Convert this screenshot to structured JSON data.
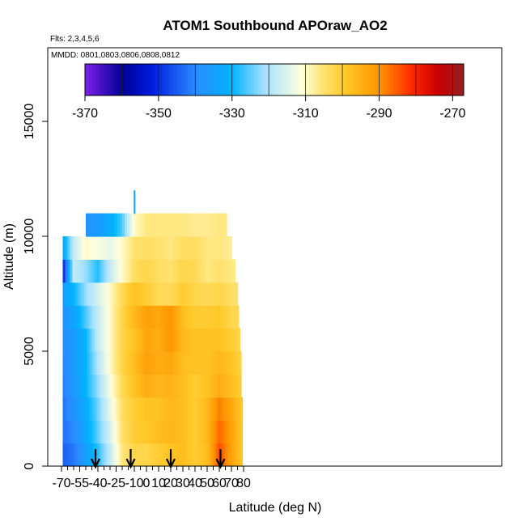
{
  "chart_data": {
    "type": "heatmap",
    "title": "ATOM1 Southbound APOraw_AO2",
    "subtitle_flights": "Flts: 2,3,4,5,6",
    "subtitle_dates": "MMDD: 0801,0803,0806,0808,0812",
    "xlabel": "Latitude (deg N)",
    "ylabel": "Altitude (m)",
    "xlim": [
      -70,
      85
    ],
    "ylim": [
      0,
      18000
    ],
    "x_ticks": [
      -70,
      -55,
      -40,
      -25,
      -10,
      0,
      10,
      20,
      30,
      40,
      50,
      60,
      70,
      80
    ],
    "x_minor_ticks": [
      -65,
      -60,
      -50,
      -45,
      -35,
      -30,
      -20,
      -15,
      -5,
      5,
      15,
      25,
      35,
      45,
      55,
      65,
      75
    ],
    "y_ticks": [
      0,
      5000,
      10000,
      15000
    ],
    "colorbar": {
      "range": [
        -370,
        -267
      ],
      "ticks": [
        -370,
        -350,
        -330,
        -310,
        -290,
        -270
      ],
      "breaks": [
        -370,
        -360,
        -350,
        -340,
        -330,
        -320,
        -310,
        -300,
        -290,
        -280,
        -270
      ]
    },
    "arrows_latitude": [
      -42,
      -13,
      20,
      61
    ],
    "lat_grid": [
      -70,
      -60,
      -50,
      -40,
      -30,
      -20,
      -10,
      0,
      10,
      20,
      30,
      40,
      50,
      60,
      70,
      80
    ],
    "alt_grid": [
      500,
      1500,
      2500,
      3500,
      4500,
      5500,
      6500,
      7500,
      8500,
      9500,
      10500,
      11500
    ],
    "values": [
      [
        -345,
        -342,
        -335,
        -328,
        -318,
        -306,
        -302,
        -302,
        -300,
        -298,
        -297,
        -300,
        -297,
        -284,
        -292,
        -300
      ],
      [
        -343,
        -340,
        -333,
        -325,
        -316,
        -305,
        -300,
        -299,
        -297,
        -296,
        -297,
        -300,
        -296,
        -286,
        -292,
        -300
      ],
      [
        -343,
        -338,
        -332,
        -324,
        -314,
        -304,
        -300,
        -298,
        -298,
        -296,
        -297,
        -300,
        -296,
        -288,
        -293,
        -300
      ],
      [
        -342,
        -337,
        -330,
        -322,
        -312,
        -303,
        -298,
        -294,
        -296,
        -295,
        -297,
        -300,
        -298,
        -294,
        -297,
        -301
      ],
      [
        -341,
        -336,
        -330,
        -320,
        -310,
        -302,
        -297,
        -292,
        -294,
        -293,
        -297,
        -298,
        -298,
        -296,
        -298,
        -302
      ],
      [
        -340,
        -336,
        -330,
        -318,
        -310,
        -302,
        -298,
        -293,
        -294,
        -290,
        -296,
        -298,
        -298,
        -298,
        -300,
        -303
      ],
      [
        -339,
        -334,
        -326,
        -318,
        -310,
        -302,
        -296,
        -292,
        -293,
        -290,
        -297,
        -300,
        -300,
        -299,
        -302,
        -304
      ],
      [
        -336,
        -330,
        -322,
        -316,
        -310,
        -303,
        -298,
        -300,
        -303,
        -303,
        -300,
        -302,
        -303,
        -302,
        -304,
        -306
      ],
      [
        -357,
        -318,
        -322,
        -328,
        -318,
        -310,
        -304,
        -302,
        -304,
        -305,
        -302,
        -303,
        -306,
        -305,
        -306,
        -308
      ],
      [
        -336,
        -318,
        -310,
        -312,
        -314,
        -310,
        -305,
        -304,
        -305,
        -306,
        -304,
        -304,
        -306,
        -306,
        -307,
        null
      ],
      [
        null,
        null,
        -338,
        -336,
        -332,
        -326,
        -310,
        -306,
        -306,
        -306,
        -306,
        -307,
        -307,
        -306,
        null,
        null
      ],
      [
        null,
        null,
        null,
        null,
        null,
        null,
        null,
        -334,
        null,
        null,
        null,
        null,
        null,
        null,
        null,
        null
      ]
    ],
    "extent_lat": [
      [
        -69,
        79
      ],
      [
        -69,
        79
      ],
      [
        -69,
        79
      ],
      [
        -69,
        78
      ],
      [
        -69,
        78
      ],
      [
        -69,
        77
      ],
      [
        -69,
        76
      ],
      [
        -69,
        75
      ],
      [
        -69,
        73
      ],
      [
        -69,
        70
      ],
      [
        -50,
        66
      ],
      [
        -10.5,
        -9.5
      ]
    ]
  }
}
